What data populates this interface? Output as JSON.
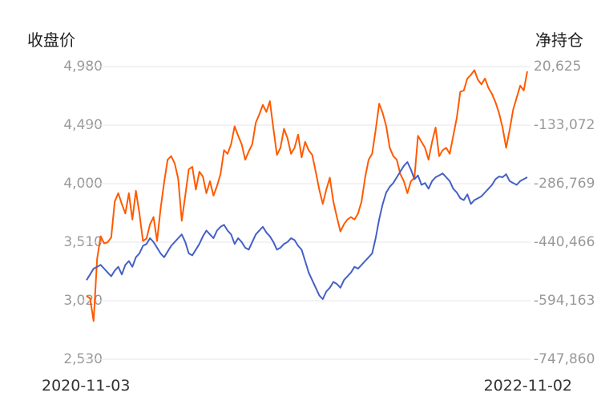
{
  "chart_data": {
    "type": "line",
    "y_left_label": "收盘价",
    "y_right_label": "净持仓",
    "x_start_label": "2020-11-03",
    "x_end_label": "2022-11-02",
    "y_left_ticks": [
      "4,980",
      "4,490",
      "4,000",
      "3,510",
      "3,020",
      "2,530"
    ],
    "y_right_ticks": [
      "20,625",
      "-133,072",
      "-286,769",
      "-440,466",
      "-594,163",
      "-747,860"
    ],
    "ylim_left": [
      2530,
      4980
    ],
    "ylim_right": [
      -747860,
      20625
    ],
    "grid": true,
    "colors": {
      "close": "#ff5a00",
      "net_position": "#4460c5",
      "grid": "#e6e6ee"
    },
    "series": [
      {
        "axis": "left",
        "color": "#ff5a00",
        "points": [
          [
            0,
            3060
          ],
          [
            1,
            3040
          ],
          [
            2,
            2850
          ],
          [
            3,
            3370
          ],
          [
            4,
            3560
          ],
          [
            5,
            3500
          ],
          [
            6,
            3510
          ],
          [
            7,
            3550
          ],
          [
            8,
            3850
          ],
          [
            9,
            3920
          ],
          [
            10,
            3830
          ],
          [
            11,
            3750
          ],
          [
            12,
            3920
          ],
          [
            13,
            3700
          ],
          [
            14,
            3940
          ],
          [
            15,
            3750
          ],
          [
            16,
            3520
          ],
          [
            17,
            3540
          ],
          [
            18,
            3660
          ],
          [
            19,
            3720
          ],
          [
            20,
            3520
          ],
          [
            21,
            3790
          ],
          [
            22,
            4010
          ],
          [
            23,
            4200
          ],
          [
            24,
            4230
          ],
          [
            25,
            4170
          ],
          [
            26,
            4040
          ],
          [
            27,
            3690
          ],
          [
            28,
            3900
          ],
          [
            29,
            4120
          ],
          [
            30,
            4140
          ],
          [
            31,
            3950
          ],
          [
            32,
            4100
          ],
          [
            33,
            4060
          ],
          [
            34,
            3920
          ],
          [
            35,
            4020
          ],
          [
            36,
            3900
          ],
          [
            37,
            3980
          ],
          [
            38,
            4080
          ],
          [
            39,
            4280
          ],
          [
            40,
            4250
          ],
          [
            41,
            4330
          ],
          [
            42,
            4480
          ],
          [
            43,
            4400
          ],
          [
            44,
            4330
          ],
          [
            45,
            4200
          ],
          [
            46,
            4270
          ],
          [
            47,
            4330
          ],
          [
            48,
            4510
          ],
          [
            49,
            4580
          ],
          [
            50,
            4660
          ],
          [
            51,
            4600
          ],
          [
            52,
            4690
          ],
          [
            53,
            4460
          ],
          [
            54,
            4240
          ],
          [
            55,
            4300
          ],
          [
            56,
            4460
          ],
          [
            57,
            4380
          ],
          [
            58,
            4250
          ],
          [
            59,
            4300
          ],
          [
            60,
            4410
          ],
          [
            61,
            4220
          ],
          [
            62,
            4350
          ],
          [
            63,
            4280
          ],
          [
            64,
            4240
          ],
          [
            65,
            4100
          ],
          [
            66,
            3950
          ],
          [
            67,
            3830
          ],
          [
            68,
            3950
          ],
          [
            69,
            4050
          ],
          [
            70,
            3850
          ],
          [
            71,
            3720
          ],
          [
            72,
            3600
          ],
          [
            73,
            3660
          ],
          [
            74,
            3700
          ],
          [
            75,
            3720
          ],
          [
            76,
            3700
          ],
          [
            77,
            3750
          ],
          [
            78,
            3850
          ],
          [
            79,
            4050
          ],
          [
            80,
            4200
          ],
          [
            81,
            4250
          ],
          [
            82,
            4450
          ],
          [
            83,
            4670
          ],
          [
            84,
            4590
          ],
          [
            85,
            4480
          ],
          [
            86,
            4300
          ],
          [
            87,
            4230
          ],
          [
            88,
            4200
          ],
          [
            89,
            4080
          ],
          [
            90,
            4020
          ],
          [
            91,
            3920
          ],
          [
            92,
            4020
          ],
          [
            93,
            4050
          ],
          [
            94,
            4400
          ],
          [
            95,
            4350
          ],
          [
            96,
            4300
          ],
          [
            97,
            4200
          ],
          [
            98,
            4350
          ],
          [
            99,
            4470
          ],
          [
            100,
            4230
          ],
          [
            101,
            4280
          ],
          [
            102,
            4300
          ],
          [
            103,
            4250
          ],
          [
            104,
            4400
          ],
          [
            105,
            4550
          ],
          [
            106,
            4770
          ],
          [
            107,
            4780
          ],
          [
            108,
            4880
          ],
          [
            109,
            4910
          ],
          [
            110,
            4950
          ],
          [
            111,
            4870
          ],
          [
            112,
            4830
          ],
          [
            113,
            4880
          ],
          [
            114,
            4800
          ],
          [
            115,
            4750
          ],
          [
            116,
            4680
          ],
          [
            117,
            4590
          ],
          [
            118,
            4470
          ],
          [
            119,
            4300
          ],
          [
            120,
            4450
          ],
          [
            121,
            4620
          ],
          [
            122,
            4720
          ],
          [
            123,
            4820
          ],
          [
            124,
            4780
          ],
          [
            125,
            4940
          ]
        ]
      },
      {
        "axis": "right",
        "color": "#4460c5",
        "points": [
          [
            0,
            -540000
          ],
          [
            1,
            -525000
          ],
          [
            2,
            -510000
          ],
          [
            3,
            -505000
          ],
          [
            4,
            -500000
          ],
          [
            5,
            -510000
          ],
          [
            6,
            -520000
          ],
          [
            7,
            -530000
          ],
          [
            8,
            -515000
          ],
          [
            9,
            -505000
          ],
          [
            10,
            -525000
          ],
          [
            11,
            -500000
          ],
          [
            12,
            -490000
          ],
          [
            13,
            -505000
          ],
          [
            14,
            -480000
          ],
          [
            15,
            -470000
          ],
          [
            16,
            -450000
          ],
          [
            17,
            -445000
          ],
          [
            18,
            -430000
          ],
          [
            19,
            -440000
          ],
          [
            20,
            -455000
          ],
          [
            21,
            -470000
          ],
          [
            22,
            -480000
          ],
          [
            23,
            -465000
          ],
          [
            24,
            -450000
          ],
          [
            25,
            -440000
          ],
          [
            26,
            -430000
          ],
          [
            27,
            -420000
          ],
          [
            28,
            -440000
          ],
          [
            29,
            -470000
          ],
          [
            30,
            -475000
          ],
          [
            31,
            -460000
          ],
          [
            32,
            -445000
          ],
          [
            33,
            -425000
          ],
          [
            34,
            -410000
          ],
          [
            35,
            -420000
          ],
          [
            36,
            -430000
          ],
          [
            37,
            -410000
          ],
          [
            38,
            -400000
          ],
          [
            39,
            -395000
          ],
          [
            40,
            -410000
          ],
          [
            41,
            -420000
          ],
          [
            42,
            -445000
          ],
          [
            43,
            -430000
          ],
          [
            44,
            -440000
          ],
          [
            45,
            -455000
          ],
          [
            46,
            -460000
          ],
          [
            47,
            -440000
          ],
          [
            48,
            -420000
          ],
          [
            49,
            -410000
          ],
          [
            50,
            -400000
          ],
          [
            51,
            -415000
          ],
          [
            52,
            -425000
          ],
          [
            53,
            -440000
          ],
          [
            54,
            -460000
          ],
          [
            55,
            -455000
          ],
          [
            56,
            -445000
          ],
          [
            57,
            -440000
          ],
          [
            58,
            -430000
          ],
          [
            59,
            -435000
          ],
          [
            60,
            -450000
          ],
          [
            61,
            -460000
          ],
          [
            62,
            -490000
          ],
          [
            63,
            -520000
          ],
          [
            64,
            -540000
          ],
          [
            65,
            -560000
          ],
          [
            66,
            -580000
          ],
          [
            67,
            -590000
          ],
          [
            68,
            -570000
          ],
          [
            69,
            -560000
          ],
          [
            70,
            -545000
          ],
          [
            71,
            -550000
          ],
          [
            72,
            -560000
          ],
          [
            73,
            -540000
          ],
          [
            74,
            -530000
          ],
          [
            75,
            -520000
          ],
          [
            76,
            -505000
          ],
          [
            77,
            -510000
          ],
          [
            78,
            -500000
          ],
          [
            79,
            -490000
          ],
          [
            80,
            -480000
          ],
          [
            81,
            -470000
          ],
          [
            82,
            -430000
          ],
          [
            83,
            -380000
          ],
          [
            84,
            -340000
          ],
          [
            85,
            -310000
          ],
          [
            86,
            -295000
          ],
          [
            87,
            -285000
          ],
          [
            88,
            -270000
          ],
          [
            89,
            -255000
          ],
          [
            90,
            -240000
          ],
          [
            91,
            -230000
          ],
          [
            92,
            -250000
          ],
          [
            93,
            -275000
          ],
          [
            94,
            -265000
          ],
          [
            95,
            -290000
          ],
          [
            96,
            -285000
          ],
          [
            97,
            -300000
          ],
          [
            98,
            -280000
          ],
          [
            99,
            -270000
          ],
          [
            100,
            -265000
          ],
          [
            101,
            -260000
          ],
          [
            102,
            -270000
          ],
          [
            103,
            -280000
          ],
          [
            104,
            -300000
          ],
          [
            105,
            -310000
          ],
          [
            106,
            -325000
          ],
          [
            107,
            -330000
          ],
          [
            108,
            -315000
          ],
          [
            109,
            -340000
          ],
          [
            110,
            -330000
          ],
          [
            111,
            -325000
          ],
          [
            112,
            -320000
          ],
          [
            113,
            -310000
          ],
          [
            114,
            -300000
          ],
          [
            115,
            -290000
          ],
          [
            116,
            -275000
          ],
          [
            117,
            -268000
          ],
          [
            118,
            -270000
          ],
          [
            119,
            -262000
          ],
          [
            120,
            -280000
          ],
          [
            121,
            -285000
          ],
          [
            122,
            -290000
          ],
          [
            123,
            -280000
          ],
          [
            124,
            -275000
          ],
          [
            125,
            -270000
          ]
        ]
      }
    ]
  }
}
